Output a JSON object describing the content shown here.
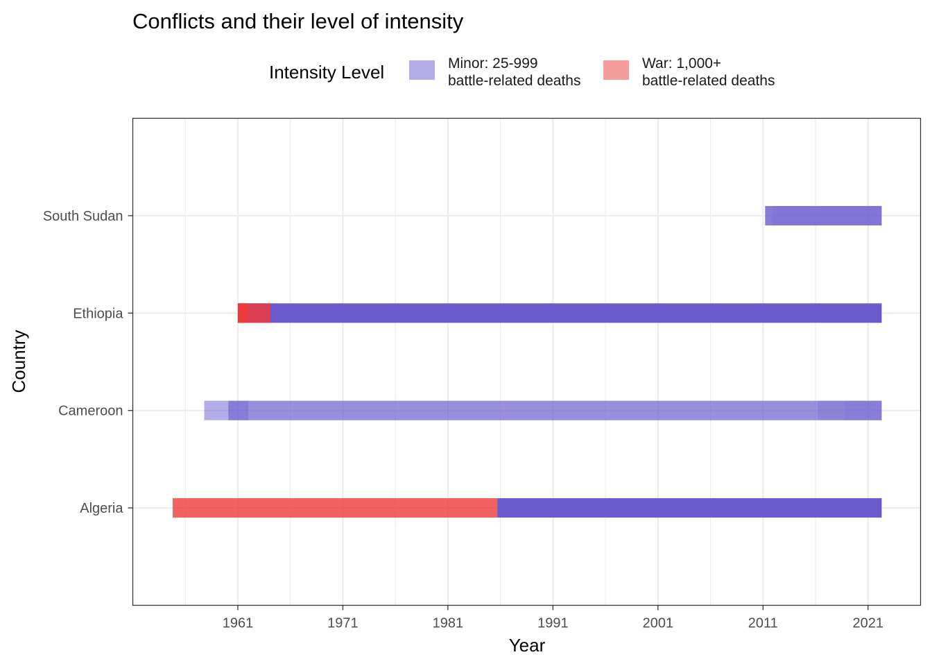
{
  "chart_data": {
    "type": "bar",
    "orientation": "horizontal",
    "title": "Conflicts and their level of intensity",
    "xlabel": "Year",
    "ylabel": "Country",
    "xlim": [
      1951,
      2026
    ],
    "x_ticks": [
      1961,
      1971,
      1981,
      1991,
      2001,
      2011,
      2021
    ],
    "categories": [
      "South Sudan",
      "Ethiopia",
      "Cameroon",
      "Algeria"
    ],
    "grid": true,
    "legend": {
      "title": "Intensity Level",
      "position": "top",
      "entries": [
        {
          "key": "minor",
          "line1": "Minor: 25-999",
          "line2": "battle-related deaths",
          "color": "#6A5ACD"
        },
        {
          "key": "war",
          "line1": "War: 1,000+",
          "line2": "battle-related deaths",
          "color": "#EE3B3B"
        }
      ]
    },
    "segments": [
      {
        "country": "South Sudan",
        "start": 2011.2,
        "end": 2022.3,
        "level": "minor",
        "opacity": 0.8
      },
      {
        "country": "South Sudan",
        "start": 2011.9,
        "end": 2022.3,
        "level": "minor",
        "opacity": 0.15
      },
      {
        "country": "Ethiopia",
        "start": 1961.0,
        "end": 2022.3,
        "level": "minor",
        "opacity": 1.0
      },
      {
        "country": "Ethiopia",
        "start": 1961.0,
        "end": 1964.1,
        "level": "war",
        "opacity": 0.85
      },
      {
        "country": "Ethiopia",
        "start": 1961.0,
        "end": 1961.9,
        "level": "war",
        "opacity": 0.95
      },
      {
        "country": "Cameroon",
        "start": 1957.8,
        "end": 2022.3,
        "level": "minor",
        "opacity": 0.5
      },
      {
        "country": "Cameroon",
        "start": 1960.1,
        "end": 2022.3,
        "level": "minor",
        "opacity": 0.35
      },
      {
        "country": "Cameroon",
        "start": 1960.1,
        "end": 1962.0,
        "level": "minor",
        "opacity": 0.35
      },
      {
        "country": "Cameroon",
        "start": 2016.2,
        "end": 2022.3,
        "level": "minor",
        "opacity": 0.25
      },
      {
        "country": "Cameroon",
        "start": 2018.8,
        "end": 2022.3,
        "level": "minor",
        "opacity": 0.1
      },
      {
        "country": "Algeria",
        "start": 1954.8,
        "end": 1985.7,
        "level": "war",
        "opacity": 0.8
      },
      {
        "country": "Algeria",
        "start": 1985.7,
        "end": 2022.3,
        "level": "minor",
        "opacity": 1.0
      }
    ]
  }
}
